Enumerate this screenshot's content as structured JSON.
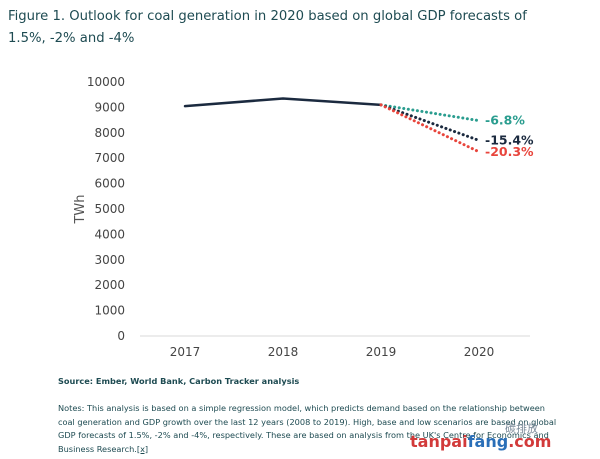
{
  "title": "Figure 1. Outlook for coal generation in 2020 based on global GDP forecasts of 1.5%, -2% and -4%",
  "source": "Source: Ember, World Bank, Carbon Tracker analysis",
  "notes": "Notes: This analysis is based on a simple regression model, which predicts demand based on the relationship between coal generation and GDP growth over the last 12 years (2008 to 2019). High, base and low scenarios are based on global GDP forecasts of 1.5%, -2% and -4%, respectively. These are based on analysis from the UK's Centre for Economics and Business Research.",
  "notes_link": "[x]",
  "watermark": {
    "cn": "碳排放",
    "url_red": "tanpai",
    "url_blue": "fang",
    "url_red2": ".com"
  },
  "chart_data": {
    "type": "line",
    "title": "Figure 1. Outlook for coal generation in 2020 based on global GDP forecasts of 1.5%, -2% and -4%",
    "xlabel": "",
    "ylabel": "TWh",
    "categories": [
      "2017",
      "2018",
      "2019",
      "2020"
    ],
    "ylim": [
      0,
      10000
    ],
    "yticks": [
      0,
      1000,
      2000,
      3000,
      4000,
      5000,
      6000,
      7000,
      8000,
      9000,
      10000
    ],
    "grid": false,
    "series": [
      {
        "values": [
          9050,
          9350,
          9100,
          null
        ],
        "color": "#1b2a3f",
        "style": "solid"
      },
      {
        "values": [
          null,
          null,
          9100,
          8480
        ],
        "color": "#2a9d8f",
        "style": "dotted",
        "label": "-6.8%"
      },
      {
        "values": [
          null,
          null,
          9100,
          7700
        ],
        "color": "#1b2a3f",
        "style": "dotted",
        "label": "-15.4%"
      },
      {
        "values": [
          null,
          null,
          9100,
          7250
        ],
        "color": "#e8453c",
        "style": "dotted",
        "label": "-20.3%"
      }
    ]
  }
}
